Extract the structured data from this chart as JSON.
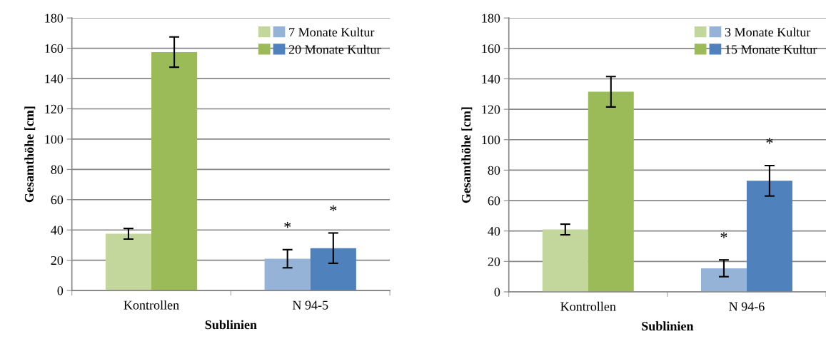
{
  "chart_data": [
    {
      "type": "bar",
      "categories": [
        "Kontrollen",
        "N 94-5"
      ],
      "xlabel": "Sublinien",
      "ylabel": "Gesamthöhe [cm]",
      "ylim": [
        0,
        180
      ],
      "yticks": [
        0,
        20,
        40,
        60,
        80,
        100,
        120,
        140,
        160,
        180
      ],
      "grid": "y",
      "legend": "top right",
      "series": [
        {
          "name": "7 Monate Kultur",
          "colors": [
            "#c3d69b",
            "#95b3d7"
          ],
          "values": [
            37.5,
            21
          ],
          "errors": [
            3.5,
            6
          ]
        },
        {
          "name": "20 Monate Kultur",
          "colors": [
            "#9bbb59",
            "#4f81bd"
          ],
          "values": [
            157.5,
            28
          ],
          "errors": [
            10,
            10
          ]
        }
      ],
      "annotations": [
        {
          "text": "*",
          "x": "N 94-5",
          "y": 21
        },
        {
          "text": "*",
          "x": "N 94-5",
          "y": 28
        }
      ]
    },
    {
      "type": "bar",
      "categories": [
        "Kontrollen",
        "N 94-6"
      ],
      "xlabel": "Sublinien",
      "ylabel": "Gesamthöhe [cm]",
      "ylim": [
        0,
        180
      ],
      "yticks": [
        0,
        20,
        40,
        60,
        80,
        100,
        120,
        140,
        160,
        180
      ],
      "grid": "y",
      "legend": "top right",
      "series": [
        {
          "name": "3 Monate Kultur",
          "colors": [
            "#c3d69b",
            "#95b3d7"
          ],
          "values": [
            41,
            15.5
          ],
          "errors": [
            3.5,
            5.5
          ]
        },
        {
          "name": "15 Monate Kultur",
          "colors": [
            "#9bbb59",
            "#4f81bd"
          ],
          "values": [
            131.5,
            73
          ],
          "errors": [
            10,
            10
          ]
        }
      ],
      "annotations": [
        {
          "text": "*",
          "x": "N 94-6",
          "y": 15.5
        },
        {
          "text": "*",
          "x": "N 94-6",
          "y": 73
        }
      ]
    }
  ]
}
